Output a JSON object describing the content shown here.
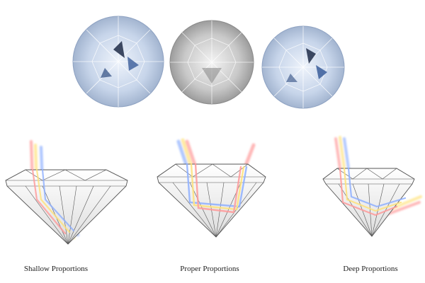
{
  "captions": {
    "shallow": "Shallow Proportions",
    "proper": "Proper Proportions",
    "deep": "Deep Proportions"
  },
  "colors": {
    "diamond_blue": "#b8c8df",
    "diamond_gray": "#bdbdbd",
    "ray_red": "#ff8a8a",
    "ray_yellow": "#ffe066",
    "ray_blue": "#7fa8ff",
    "outline": "#555555"
  },
  "icons": {
    "top_views": [
      "diamond-top-view-icon",
      "diamond-top-view-icon",
      "diamond-top-view-icon"
    ],
    "side_views": [
      "diamond-side-view-icon",
      "diamond-side-view-icon",
      "diamond-side-view-icon"
    ]
  }
}
